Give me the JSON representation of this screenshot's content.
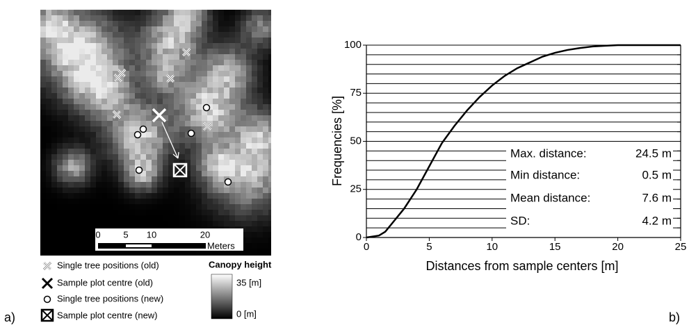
{
  "panel_labels": [
    "a)",
    "b)"
  ],
  "map": {
    "scale_labels": [
      "0",
      "5",
      "10",
      "20",
      "Meters"
    ],
    "legend": [
      "Single tree positions (old)",
      "Sample plot centre (old)",
      "Single tree positions (new)",
      "Sample plot centre (new)"
    ],
    "colorbar_title": "Canopy height",
    "colorbar_labels": [
      "35 [m]",
      "0 [m]"
    ]
  },
  "chart_data": {
    "type": "line",
    "x_label": "Distances from sample centers [m]",
    "y_label": "Frequencies [%]",
    "x": [
      0,
      1,
      1.5,
      2,
      3,
      4,
      5,
      6,
      7,
      8,
      9,
      10,
      11,
      12,
      13,
      14,
      15,
      16,
      17,
      18,
      19,
      20,
      25
    ],
    "values": [
      0,
      1,
      3,
      7,
      15,
      25,
      37,
      49,
      58,
      66,
      73,
      79,
      84,
      88,
      91,
      94,
      96,
      97.5,
      98.5,
      99.3,
      99.7,
      100,
      100
    ],
    "color": "#000000",
    "xlim": [
      0,
      25
    ],
    "ylim": [
      0,
      100
    ],
    "xticks": [
      0,
      5,
      10,
      15,
      20,
      25
    ],
    "yticks": [
      0,
      25,
      50,
      75,
      100
    ],
    "minor_yticks": [
      5,
      10,
      15,
      20,
      30,
      35,
      40,
      45,
      55,
      60,
      65,
      70,
      80,
      85,
      90,
      95
    ],
    "grid": true,
    "stats": [
      {
        "label": "Max. distance:",
        "value": "24.5 m"
      },
      {
        "label": "Min distance:",
        "value": "0.5 m"
      },
      {
        "label": "Mean distance:",
        "value": "7.6 m"
      },
      {
        "label": "SD:",
        "value": "4.2 m"
      }
    ]
  }
}
